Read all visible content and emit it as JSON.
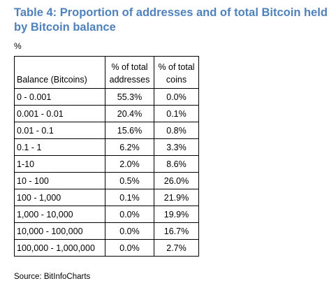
{
  "title": "Table 4: Proportion of addresses and of total Bitcoin held by Bitcoin balance",
  "unit_label": "%",
  "table": {
    "headers": {
      "balance": "Balance (Bitcoins)",
      "addresses_line1": "% of total",
      "addresses_line2": "addresses",
      "coins_line1": "% of total",
      "coins_line2": "coins"
    },
    "rows": [
      {
        "balance": "0 - 0.001",
        "addresses": "55.3%",
        "coins": "0.0%"
      },
      {
        "balance": "0.001 - 0.01",
        "addresses": "20.4%",
        "coins": "0.1%"
      },
      {
        "balance": "0.01 - 0.1",
        "addresses": "15.6%",
        "coins": "0.8%"
      },
      {
        "balance": "0.1 - 1",
        "addresses": "6.2%",
        "coins": "3.3%"
      },
      {
        "balance": "1-10",
        "addresses": "2.0%",
        "coins": "8.6%"
      },
      {
        "balance": "10 - 100",
        "addresses": "0.5%",
        "coins": "26.0%"
      },
      {
        "balance": "100 - 1,000",
        "addresses": "0.1%",
        "coins": "21.9%"
      },
      {
        "balance": "1,000 - 10,000",
        "addresses": "0.0%",
        "coins": "19.9%"
      },
      {
        "balance": "10,000 - 100,000",
        "addresses": "0.0%",
        "coins": "16.7%"
      },
      {
        "balance": "100,000 - 1,000,000",
        "addresses": "0.0%",
        "coins": "2.7%"
      }
    ]
  },
  "source": "Source: BitInfoCharts",
  "colors": {
    "title": "#4f81bd",
    "text": "#000000",
    "border": "#000000"
  }
}
